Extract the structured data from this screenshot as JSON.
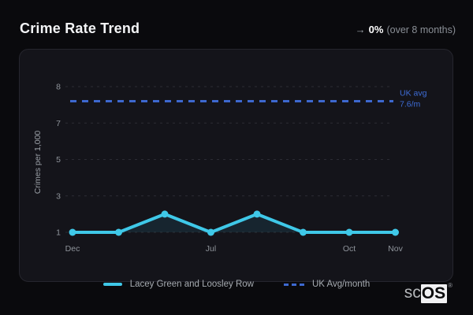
{
  "header": {
    "title": "Crime Rate Trend",
    "trend_arrow": "→",
    "trend_value": "0%",
    "trend_period": "(over 8 months)"
  },
  "chart_data": {
    "type": "line",
    "title": "Crime Rate Trend",
    "ylabel": "Crimes per 1,000",
    "y_ticks": [
      8,
      7,
      5,
      3,
      1
    ],
    "x_labels": [
      "Dec",
      "",
      "",
      "Jul",
      "",
      "",
      "Oct",
      "Nov"
    ],
    "series": [
      {
        "name": "Lacey Green and Loosley Row",
        "type": "line",
        "values": [
          1,
          1,
          2,
          1,
          2,
          1,
          1,
          1
        ],
        "color": "#3fc8e8",
        "style": "solid",
        "area_fill": "rgba(63,200,232,0.10)"
      },
      {
        "name": "UK Avg/month",
        "type": "reference-line",
        "value": 7.6,
        "color": "#3d68cf",
        "style": "dashed"
      }
    ],
    "reference_label": {
      "line1": "UK avg",
      "line2": "7.6/m"
    },
    "grid": true,
    "grid_color": "#2c2c34",
    "axis_text_color": "#8f949b",
    "reference_text_color": "#3e6cd6",
    "legend_position": "bottom"
  },
  "logo": {
    "prefix": "sc",
    "suffix": "OS",
    "registered": "®"
  }
}
